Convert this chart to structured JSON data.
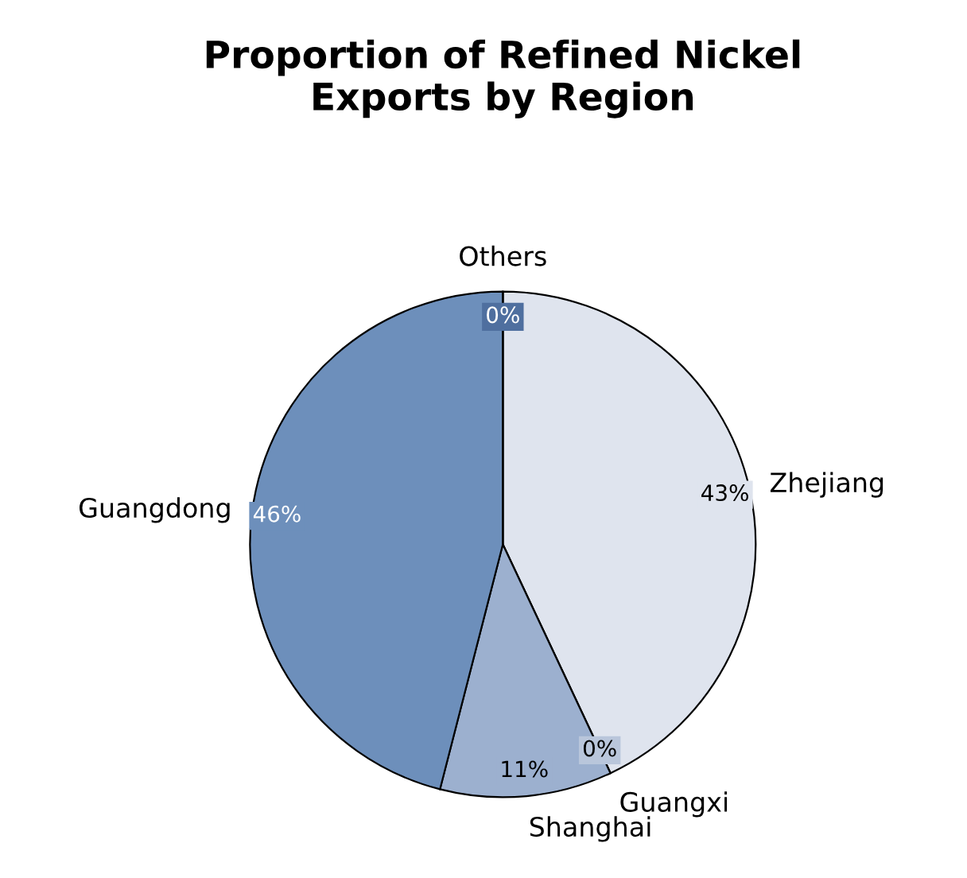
{
  "chart_data": {
    "type": "pie",
    "title": "Proportion of Refined Nickel\nExports by Region",
    "categories": [
      "Zhejiang",
      "Guangxi",
      "Shanghai",
      "Guangdong",
      "Others"
    ],
    "values": [
      43,
      0,
      11,
      46,
      0
    ],
    "colors": [
      "#dfe4ee",
      "#b9c6db",
      "#9cb0cf",
      "#6d8fbb",
      "#4f6f9f"
    ],
    "value_labels": [
      "43%",
      "0%",
      "11%",
      "46%",
      "0%"
    ]
  }
}
